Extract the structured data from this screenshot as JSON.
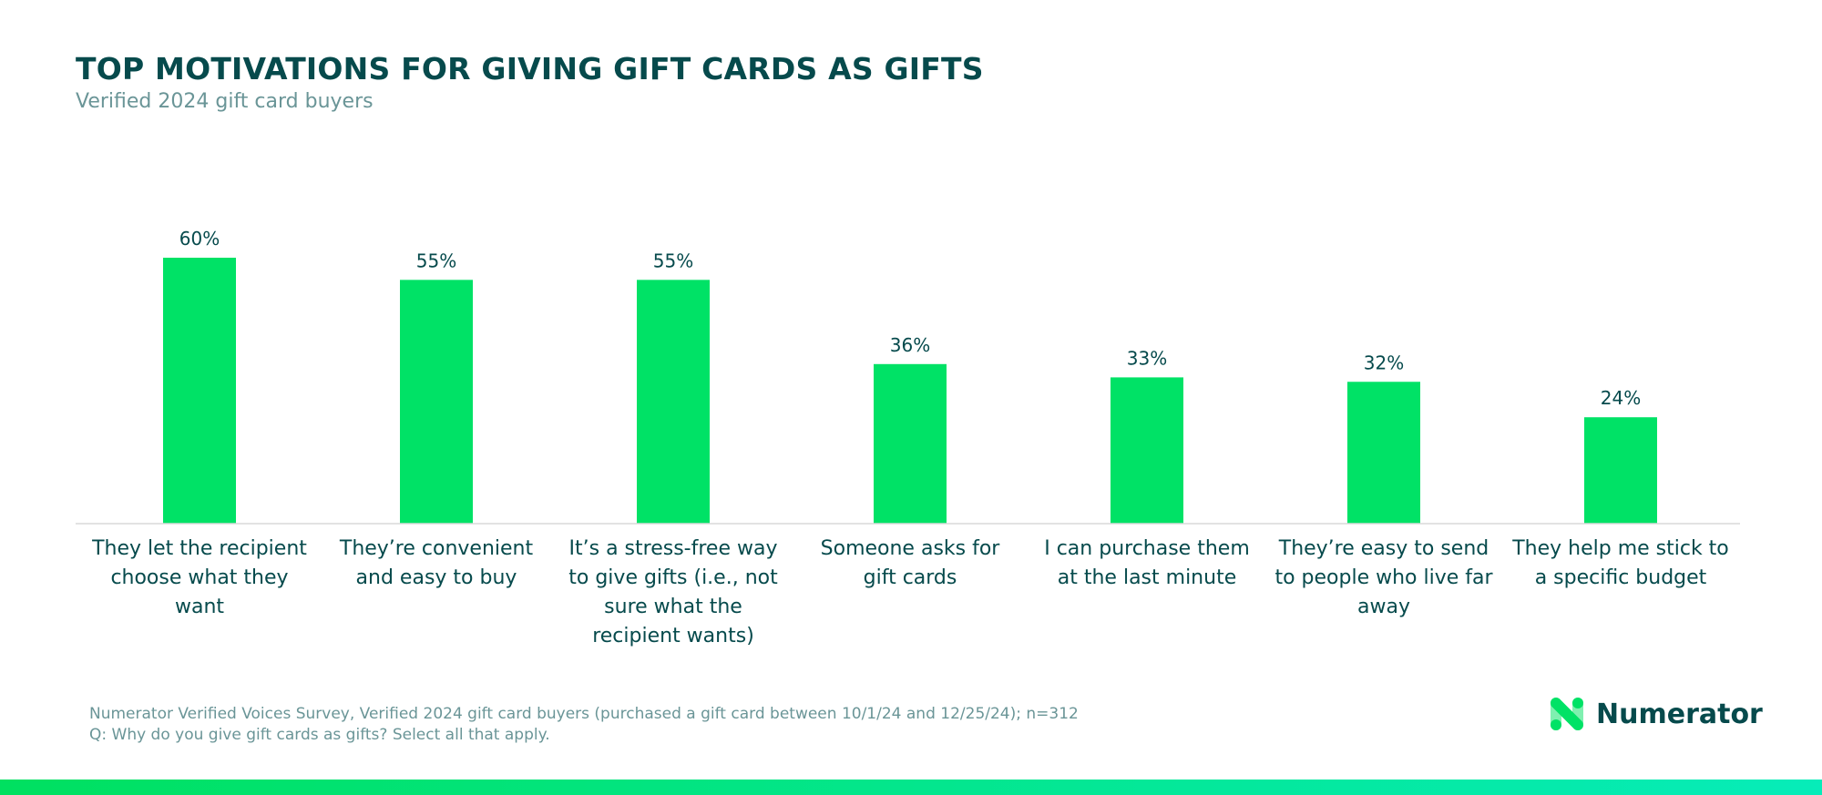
{
  "chart_data": {
    "type": "bar",
    "title": "TOP MOTIVATIONS FOR GIVING GIFT CARDS AS GIFTS",
    "subtitle": "Verified 2024 gift card buyers",
    "categories": [
      "They let the recipient choose what they want",
      "They're convenient and easy to buy",
      "It's a stress-free way to give gifts (i.e., not sure what the recipient wants)",
      "Someone asks for gift cards",
      "I can purchase them at the last minute",
      "They're easy to send to people who live far away",
      "They help me stick to a specific budget"
    ],
    "category_lines": [
      [
        "They let the recipient",
        "choose what they",
        "want"
      ],
      [
        "They’re convenient",
        "and easy to buy"
      ],
      [
        "It’s a stress-free way",
        "to give gifts (i.e., not",
        "sure what the",
        "recipient wants)"
      ],
      [
        "Someone asks for",
        "gift cards"
      ],
      [
        "I can purchase them",
        "at the last minute"
      ],
      [
        "They’re easy to send",
        "to people who live far",
        "away"
      ],
      [
        "They help me stick to",
        "a specific budget"
      ]
    ],
    "values": [
      60,
      55,
      55,
      36,
      33,
      32,
      24
    ],
    "data_labels": [
      "60%",
      "55%",
      "55%",
      "36%",
      "33%",
      "32%",
      "24%"
    ],
    "ylim": [
      0,
      60
    ],
    "grid": false,
    "bar_color": "#00e266",
    "text_color": "#064a4c"
  },
  "footnote": {
    "source": "Numerator Verified Voices Survey, Verified 2024 gift card buyers (purchased a gift card between 10/1/24 and 12/25/24); n=312",
    "question": "Q: Why do you give gift cards as gifts? Select all that apply."
  },
  "logo": {
    "text": "Numerator"
  }
}
